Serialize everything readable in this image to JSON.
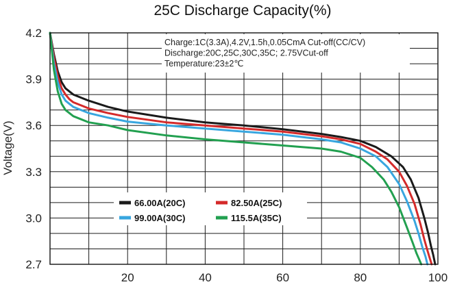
{
  "chart_data": {
    "type": "line",
    "title": "25C Discharge Capacity(%)",
    "xlabel": "",
    "ylabel": "Voltage(V)",
    "xlim": [
      0,
      100
    ],
    "ylim": [
      2.7,
      4.2
    ],
    "x_ticks": [
      20,
      40,
      60,
      80,
      100
    ],
    "y_ticks": [
      "4.2",
      "3.9",
      "3.6",
      "3.3",
      "3.0",
      "2.7"
    ],
    "grid": true,
    "annotations": [
      "Charge:1C(3.3A),4.2V,1.5h,0.05CmA Cut-off(CC/CV)",
      "Discharge:20C,25C,30C,35C; 2.75VCut-off",
      "Temperature:23±2℃"
    ],
    "legend_position": "bottom-left",
    "series": [
      {
        "name": "66.00A(20C)",
        "color": "#1a1a1a",
        "x": [
          0,
          1,
          2,
          3,
          4,
          5,
          6,
          8,
          10,
          15,
          20,
          30,
          40,
          50,
          60,
          70,
          75,
          80,
          84,
          88,
          91,
          93,
          95,
          96.5,
          97.5,
          98.2,
          98.8,
          99.3
        ],
        "y": [
          4.2,
          4.06,
          3.95,
          3.88,
          3.84,
          3.82,
          3.8,
          3.78,
          3.76,
          3.72,
          3.69,
          3.65,
          3.62,
          3.6,
          3.575,
          3.545,
          3.525,
          3.5,
          3.46,
          3.4,
          3.33,
          3.25,
          3.13,
          3.0,
          2.9,
          2.82,
          2.76,
          2.7
        ]
      },
      {
        "name": "82.50A(25C)",
        "color": "#d42a2a",
        "x": [
          0,
          1,
          2,
          3,
          4,
          5,
          6,
          8,
          10,
          15,
          20,
          30,
          40,
          50,
          60,
          70,
          75,
          80,
          84,
          87,
          90,
          92,
          94,
          95.5,
          96.5,
          97.3,
          97.9,
          98.4
        ],
        "y": [
          4.2,
          4.04,
          3.92,
          3.84,
          3.8,
          3.77,
          3.75,
          3.73,
          3.71,
          3.68,
          3.655,
          3.62,
          3.6,
          3.58,
          3.56,
          3.53,
          3.51,
          3.48,
          3.43,
          3.38,
          3.3,
          3.21,
          3.09,
          2.96,
          2.86,
          2.79,
          2.74,
          2.7
        ]
      },
      {
        "name": "99.00A(30C)",
        "color": "#38a6df",
        "x": [
          0,
          1,
          2,
          3,
          4,
          5,
          6,
          8,
          10,
          15,
          20,
          30,
          40,
          50,
          60,
          70,
          75,
          80,
          84,
          87,
          90,
          92,
          94,
          95,
          96,
          96.8,
          97.3
        ],
        "y": [
          4.2,
          4.0,
          3.88,
          3.8,
          3.76,
          3.74,
          3.72,
          3.7,
          3.68,
          3.65,
          3.625,
          3.6,
          3.58,
          3.56,
          3.54,
          3.51,
          3.49,
          3.45,
          3.4,
          3.33,
          3.22,
          3.11,
          2.98,
          2.9,
          2.81,
          2.75,
          2.7
        ]
      },
      {
        "name": "115.5A(35C)",
        "color": "#22a050",
        "x": [
          0,
          1,
          2,
          3,
          4,
          5,
          6,
          8,
          10,
          15,
          20,
          30,
          40,
          50,
          60,
          70,
          75,
          80,
          83,
          86,
          88,
          90,
          92,
          93.5,
          94.5,
          95.2,
          95.7
        ],
        "y": [
          4.2,
          3.96,
          3.82,
          3.74,
          3.7,
          3.68,
          3.66,
          3.64,
          3.62,
          3.6,
          3.57,
          3.535,
          3.51,
          3.49,
          3.47,
          3.45,
          3.43,
          3.39,
          3.33,
          3.25,
          3.17,
          3.07,
          2.94,
          2.84,
          2.77,
          2.73,
          2.7
        ]
      }
    ]
  }
}
